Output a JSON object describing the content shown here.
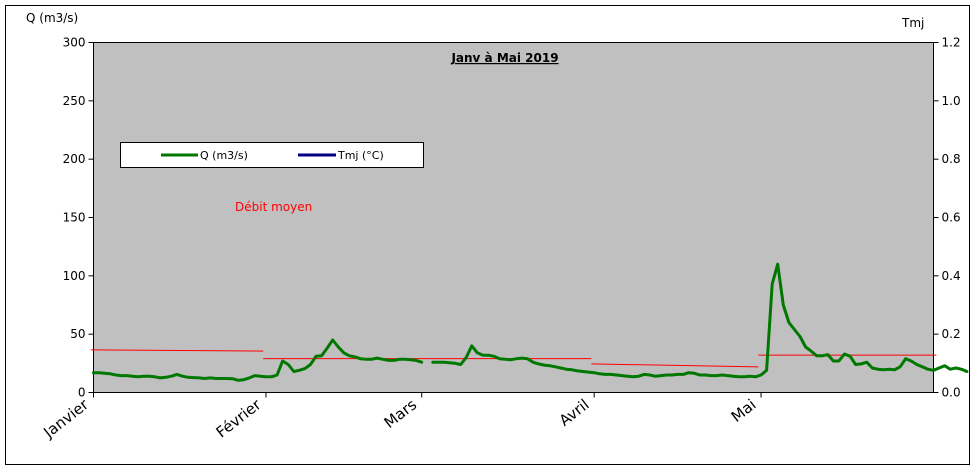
{
  "chart_data": {
    "type": "line",
    "title": "Janv à Mai 2019",
    "y_left_label": "Q (m3/s)",
    "y_right_label": "Tmj",
    "ylim_left": [
      0,
      300
    ],
    "ylim_right": [
      0,
      1.2
    ],
    "y_left_ticks": [
      "0",
      "50",
      "100",
      "150",
      "200",
      "250",
      "300"
    ],
    "y_right_ticks": [
      "0.0",
      "0.2",
      "0.4",
      "0.6",
      "0.8",
      "1.0",
      "1.2"
    ],
    "x_ticks": [
      {
        "label": "Janvier",
        "day": 1
      },
      {
        "label": "Février",
        "day": 32
      },
      {
        "label": "Mars",
        "day": 60
      },
      {
        "label": "Avril",
        "day": 91
      },
      {
        "label": "Mai",
        "day": 121
      }
    ],
    "x_range": [
      1,
      152
    ],
    "grid": false,
    "background": "#c0c0c0",
    "legend": {
      "position": "upper-left",
      "entries": [
        "Q (m3/s)",
        "Tmj (°C)"
      ]
    },
    "annotation": "Débit moyen",
    "series": [
      {
        "name": "Q (m3/s)",
        "color": "#007800",
        "segments": [
          {
            "start_day": 1,
            "values": [
              17,
              17,
              16.5,
              16,
              15,
              14.5,
              14.5,
              14,
              13.5,
              14,
              14,
              13.5,
              12.5,
              13,
              14,
              15.5,
              14,
              13,
              12.8,
              12.5,
              12,
              12.5,
              12,
              12,
              12,
              11.8,
              10.5,
              11,
              12.5,
              14.5,
              14,
              13.5,
              13.5,
              15,
              27,
              24,
              18,
              19,
              20.5,
              24,
              31,
              31.5,
              38,
              45,
              39,
              34,
              31.5,
              30.5,
              29,
              28.5,
              28.5,
              29.5,
              28.5,
              27.5,
              27.5,
              28.5,
              28.5,
              28,
              27.5,
              26
            ]
          },
          {
            "start_day": 62,
            "values": [
              26,
              26,
              26,
              25.5,
              25,
              24,
              30,
              40,
              34,
              32,
              32,
              31,
              29,
              28.5,
              28,
              29,
              29.5,
              29,
              26,
              24.5,
              23.5,
              23,
              22,
              21,
              20,
              19.5,
              18.5,
              18,
              17.5,
              17,
              16,
              15.5,
              15.5,
              15,
              14.5,
              14,
              13.5,
              14,
              15.5,
              15,
              14,
              14.5,
              15,
              15,
              15.5,
              15.5,
              17,
              16.5,
              15,
              15,
              14.5,
              14.5,
              15,
              14.5,
              14,
              13.5,
              13.5,
              14,
              13.5,
              15,
              19,
              93,
              110,
              75,
              60,
              54,
              48,
              39,
              35.5,
              31.5,
              31.5,
              32.5,
              27,
              27,
              33,
              31,
              24,
              24.5,
              26,
              21,
              20,
              19.5,
              20,
              19.5,
              22,
              29,
              27,
              24,
              22,
              20,
              19,
              21,
              23,
              20,
              21,
              20,
              18
            ]
          }
        ]
      },
      {
        "name": "Tmj (°C)",
        "color": "#000080",
        "segments": []
      },
      {
        "name": "Débit moyen",
        "color": "#ff0000",
        "segments": [
          {
            "from_day": 1,
            "to_day": 31,
            "values": [
              36.5,
              35.5
            ]
          },
          {
            "from_day": 32,
            "to_day": 59,
            "values": [
              29,
              29
            ]
          },
          {
            "from_day": 60,
            "to_day": 90,
            "values": [
              29,
              29
            ]
          },
          {
            "from_day": 91,
            "to_day": 120,
            "values": [
              24.5,
              22
            ]
          },
          {
            "from_day": 121,
            "to_day": 152,
            "values": [
              32,
              32
            ]
          }
        ]
      }
    ]
  }
}
